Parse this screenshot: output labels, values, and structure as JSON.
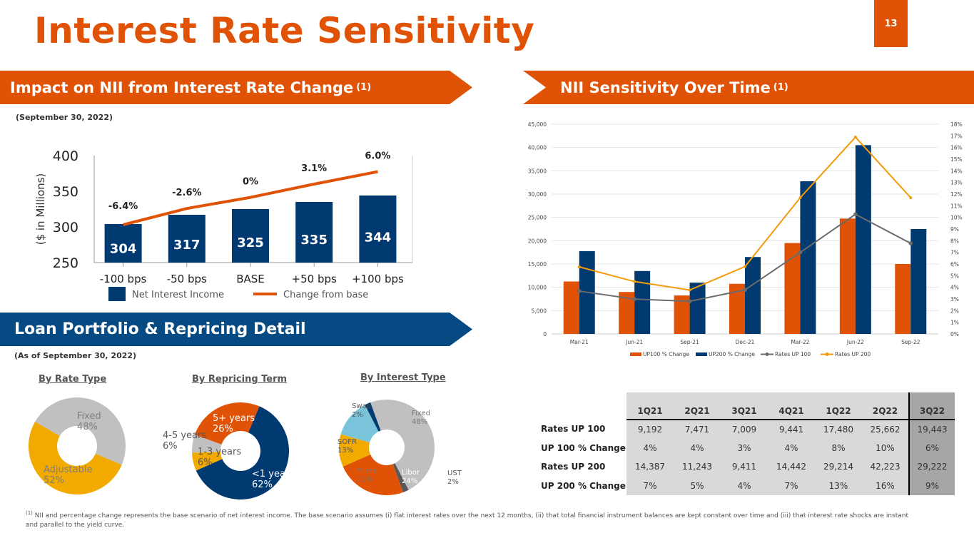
{
  "title": "Interest Rate Sensitivity",
  "page_number": "13",
  "colors": {
    "orange": "#E05206",
    "navy": "#003A70",
    "gray": "#C0C0C0",
    "gold": "#F2A900",
    "light_blue": "#7AC4DB",
    "dark_gray": "#595959",
    "line_orange": "#F29B0C",
    "line_gray": "#6B6B6B"
  },
  "banners": {
    "nii": {
      "text": "Impact on NII from Interest Rate Change",
      "sup": "(1)"
    },
    "time": {
      "text": "NII Sensitivity Over Time",
      "sup": "(1)"
    },
    "loan": {
      "text": "Loan Portfolio & Repricing Detail"
    }
  },
  "notes": {
    "sep": "(September 30, 2022)",
    "asof": "(As of September 30, 2022)"
  },
  "pie_titles": [
    "By Rate Type",
    "By Repricing Term",
    "By Interest Type"
  ],
  "chart_data": [
    {
      "type": "bar",
      "id": "nii-impact",
      "categories": [
        "-100 bps",
        "-50 bps",
        "BASE",
        "+50 bps",
        "+100 bps"
      ],
      "series": [
        {
          "name": "Net Interest Income",
          "kind": "bar",
          "values": [
            304,
            317,
            325,
            335,
            344
          ]
        },
        {
          "name": "Change from base",
          "kind": "line",
          "values": [
            -6.4,
            -2.6,
            0,
            3.1,
            6.0
          ],
          "labels": [
            "-6.4%",
            "-2.6%",
            "0%",
            "3.1%",
            "6.0%"
          ]
        }
      ],
      "ylabel": "($ in Millions)",
      "ylim": [
        250,
        400
      ],
      "yticks": [
        250,
        300,
        350,
        400
      ],
      "legend": "bottom"
    },
    {
      "type": "bar",
      "id": "nii-over-time",
      "categories": [
        "Mar-21",
        "Jun-21",
        "Sep-21",
        "Dec-21",
        "Mar-22",
        "Jun-22",
        "Sep-22"
      ],
      "series": [
        {
          "name": "UP100 % Change",
          "kind": "bar",
          "axis": "right",
          "values": [
            4.5,
            3.6,
            3.3,
            4.3,
            7.8,
            9.9,
            6.0
          ]
        },
        {
          "name": "UP200 % Change",
          "kind": "bar",
          "axis": "right",
          "values": [
            7.1,
            5.4,
            4.4,
            6.6,
            13.1,
            16.2,
            9.0
          ]
        },
        {
          "name": "Rates UP 100",
          "kind": "line",
          "axis": "left",
          "values": [
            9192,
            7471,
            7009,
            9441,
            17480,
            25662,
            19443
          ]
        },
        {
          "name": "Rates UP 200",
          "kind": "line",
          "axis": "left",
          "values": [
            14387,
            11243,
            9411,
            14442,
            29214,
            42223,
            29222
          ]
        }
      ],
      "left_ylim": [
        0,
        45000
      ],
      "left_yticks": [
        "0",
        "5,000",
        "10,000",
        "15,000",
        "20,000",
        "25,000",
        "30,000",
        "35,000",
        "40,000",
        "45,000"
      ],
      "right_ylim": [
        0,
        18
      ],
      "right_yticks": [
        "0%",
        "1%",
        "2%",
        "3%",
        "4%",
        "5%",
        "6%",
        "7%",
        "8%",
        "9%",
        "10%",
        "11%",
        "12%",
        "13%",
        "14%",
        "15%",
        "16%",
        "17%",
        "18%"
      ],
      "grid": true,
      "legend": "bottom"
    },
    {
      "type": "pie",
      "id": "by-rate-type",
      "title": "By Rate Type",
      "slices": [
        {
          "label": "Fixed",
          "value": 48,
          "text": "48%"
        },
        {
          "label": "Adjustable",
          "value": 52,
          "text": "52%"
        }
      ]
    },
    {
      "type": "pie",
      "id": "by-repricing-term",
      "title": "By Repricing Term",
      "slices": [
        {
          "label": "<1 year",
          "value": 62,
          "text": "62%"
        },
        {
          "label": "1-3 years",
          "value": 6,
          "text": "6%"
        },
        {
          "label": "4-5 years",
          "value": 6,
          "text": "6%"
        },
        {
          "label": "5+ years",
          "value": 26,
          "text": "26%"
        }
      ]
    },
    {
      "type": "pie",
      "id": "by-interest-type",
      "title": "By Interest Type",
      "slices": [
        {
          "label": "Fixed",
          "value": 48,
          "text": "48%"
        },
        {
          "label": "UST",
          "value": 2,
          "text": "2%"
        },
        {
          "label": "Libor",
          "value": 24,
          "text": "24%"
        },
        {
          "label": "Prime",
          "value": 11,
          "text": "11%"
        },
        {
          "label": "SOFR",
          "value": 13,
          "text": "13%"
        },
        {
          "label": "Swap",
          "value": 2,
          "text": "2%"
        }
      ]
    },
    {
      "type": "table",
      "id": "sensitivity-table",
      "columns": [
        "1Q21",
        "2Q21",
        "3Q21",
        "4Q21",
        "1Q22",
        "2Q22",
        "3Q22"
      ],
      "rows": [
        {
          "label": "Rates UP 100",
          "values": [
            "9,192",
            "7,471",
            "7,009",
            "9,441",
            "17,480",
            "25,662",
            "19,443"
          ]
        },
        {
          "label": "UP 100 % Change",
          "values": [
            "4%",
            "4%",
            "3%",
            "4%",
            "8%",
            "10%",
            "6%"
          ]
        },
        {
          "label": "Rates UP 200",
          "values": [
            "14,387",
            "11,243",
            "9,411",
            "14,442",
            "29,214",
            "42,223",
            "29,222"
          ]
        },
        {
          "label": "UP 200 % Change",
          "values": [
            "7%",
            "5%",
            "4%",
            "7%",
            "13%",
            "16%",
            "9%"
          ]
        }
      ]
    }
  ],
  "footnote": {
    "sup": "(1)",
    "text": "NII and percentage change represents the base scenario of net interest income. The base scenario assumes (i) flat interest rates over the next 12 months, (ii) that total financial instrument balances are kept constant over time and (iii) that interest rate shocks are instant and parallel to the yield curve."
  }
}
